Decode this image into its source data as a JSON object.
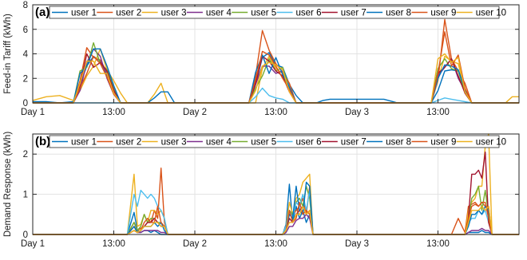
{
  "legend": [
    "user 1",
    "user 2",
    "user 3",
    "user 4",
    "user 5",
    "user 6",
    "user 7",
    "user 8",
    "user 9",
    "user 10"
  ],
  "colors": [
    "#0072bd",
    "#d95319",
    "#edb120",
    "#7e2f8e",
    "#77ac30",
    "#4dbeee",
    "#a2142f",
    "#0072bd",
    "#d95319",
    "#edb120"
  ],
  "x_tick_labels": [
    "Day 1",
    "13:00",
    "Day 2",
    "13:00",
    "Day 3",
    "13:00"
  ],
  "chart_data": [
    {
      "type": "line",
      "panel_label": "(a)",
      "ylabel": "Feed-in Tariff (kWh)",
      "ylim": [
        0,
        8
      ],
      "yticks": [
        0,
        2,
        4,
        6,
        8
      ],
      "xlim": [
        0,
        72
      ],
      "xticks": [
        0,
        12,
        24,
        36,
        48,
        60
      ],
      "x": [
        0,
        2,
        4,
        6,
        7,
        8,
        9,
        10,
        11,
        12,
        13,
        14,
        15,
        16,
        17,
        18,
        19,
        20,
        21,
        24,
        26,
        28,
        30,
        31,
        32,
        33,
        34,
        35,
        36,
        37,
        38,
        39,
        40,
        41,
        42,
        43,
        44,
        45,
        48,
        50,
        52,
        54,
        55,
        56,
        57,
        58,
        59,
        60,
        61,
        62,
        63,
        64,
        65,
        66,
        67,
        68,
        69,
        70,
        71,
        72
      ],
      "series": [
        {
          "name": "user 1",
          "values": [
            0.1,
            0.1,
            0,
            0.1,
            1.5,
            3,
            3.8,
            3.4,
            2.3,
            1.0,
            0,
            0,
            0,
            0,
            0,
            0,
            0,
            0,
            0,
            0,
            0,
            0,
            0,
            0,
            0,
            1.5,
            3.7,
            4.1,
            3.1,
            2.9,
            1.5,
            0.6,
            0,
            0,
            0,
            0,
            0,
            0,
            0,
            0,
            0,
            0,
            0,
            0,
            0,
            0,
            0,
            1.0,
            2.6,
            2.7,
            2.6,
            1.0,
            0,
            0,
            0,
            0,
            0,
            0,
            0,
            0
          ]
        },
        {
          "name": "user 2",
          "values": [
            0,
            0,
            0,
            0,
            1.8,
            4.5,
            3.7,
            3.5,
            2.5,
            1.2,
            0,
            0,
            0,
            0,
            0,
            0,
            0,
            0,
            0,
            0,
            0,
            0,
            0,
            0,
            0,
            2.2,
            5.9,
            4.3,
            3.2,
            2.5,
            1.6,
            0,
            0,
            0,
            0,
            0,
            0,
            0,
            0,
            0,
            0,
            0,
            0,
            0,
            0,
            0,
            0,
            1.8,
            6.8,
            3.6,
            2.6,
            1.6,
            0,
            0,
            0,
            0,
            0,
            0,
            0,
            0
          ]
        },
        {
          "name": "user 3",
          "values": [
            0.2,
            0.5,
            0.6,
            0.2,
            1.0,
            2.2,
            3.0,
            4.4,
            2.7,
            1.8,
            0.8,
            0,
            0,
            0,
            0,
            0.7,
            1.6,
            0,
            0,
            0,
            0,
            0,
            0,
            0,
            0,
            0,
            2.8,
            3.8,
            2.8,
            2.4,
            1.2,
            0,
            0,
            0,
            0,
            0,
            0,
            0,
            0,
            0,
            0,
            0,
            0,
            0,
            0,
            0,
            0,
            1.9,
            3.8,
            3.4,
            3.2,
            1.0,
            0,
            0,
            0,
            0,
            0,
            0,
            0.5,
            0.5
          ]
        },
        {
          "name": "user 4",
          "values": [
            0,
            0,
            0,
            0,
            1.0,
            3.3,
            4.4,
            3.8,
            2.0,
            0.7,
            0,
            0,
            0,
            0,
            0,
            0,
            0,
            0,
            0,
            0,
            0,
            0,
            0,
            0,
            0,
            1.5,
            3.0,
            3.0,
            2.4,
            2.6,
            1.0,
            0,
            0,
            0,
            0,
            0,
            0,
            0,
            0,
            0,
            0,
            0,
            0,
            0,
            0,
            0,
            0,
            2.2,
            2.9,
            3.6,
            2.0,
            1.0,
            0,
            0,
            0,
            0,
            0,
            0,
            0,
            0
          ]
        },
        {
          "name": "user 5",
          "values": [
            0,
            0,
            0,
            0,
            2.6,
            2.9,
            4.9,
            3.2,
            2.7,
            1.3,
            0,
            0,
            0,
            0,
            0,
            0,
            0,
            0,
            0,
            0,
            0,
            0,
            0,
            0,
            0,
            1.2,
            2.2,
            3.6,
            2.6,
            2.9,
            1.1,
            0,
            0,
            0,
            0,
            0,
            0,
            0,
            0,
            0,
            0,
            0,
            0,
            0,
            0,
            0,
            0,
            2.8,
            3.6,
            2.8,
            2.6,
            0.8,
            0,
            0,
            0,
            0,
            0,
            0,
            0,
            0
          ]
        },
        {
          "name": "user 6",
          "values": [
            0,
            0,
            0,
            0,
            0,
            0,
            0,
            0,
            0,
            0,
            0,
            0,
            0,
            0,
            0,
            0,
            0,
            0,
            0,
            0,
            0,
            0,
            0,
            0,
            0,
            0.5,
            1.2,
            0.6,
            0.4,
            0.3,
            0,
            0,
            0,
            0,
            0,
            0,
            0,
            0,
            0,
            0,
            0,
            0,
            0,
            0,
            0,
            0,
            0,
            0.2,
            0.4,
            0.3,
            0.2,
            0.1,
            0,
            0,
            0,
            0,
            0,
            0,
            0,
            0
          ]
        },
        {
          "name": "user 7",
          "values": [
            0,
            0,
            0,
            0,
            1.4,
            4.0,
            2.9,
            3.3,
            2.6,
            1.0,
            0,
            0,
            0,
            0,
            0,
            0,
            0,
            0,
            0,
            0,
            0,
            0,
            0,
            0,
            0,
            1.6,
            3.8,
            3.4,
            2.6,
            2.2,
            0.9,
            0,
            0,
            0,
            0,
            0,
            0,
            0,
            0,
            0,
            0,
            0,
            0,
            0,
            0,
            0,
            0,
            2.4,
            2.9,
            3.6,
            2.2,
            0.8,
            0,
            0,
            0,
            0,
            0,
            0,
            0,
            0
          ]
        },
        {
          "name": "user 8",
          "values": [
            0,
            0,
            0,
            0,
            2.4,
            3.0,
            4.4,
            4.4,
            3.0,
            1.4,
            0,
            0,
            0,
            0,
            0,
            0.4,
            0.9,
            0.9,
            0,
            0,
            0,
            0,
            0,
            0,
            0,
            2.5,
            3.9,
            2.4,
            3.7,
            2.3,
            1.3,
            0,
            0,
            0,
            0,
            0.2,
            0.3,
            0.3,
            0.3,
            0.3,
            0.3,
            0,
            0,
            0,
            0,
            0,
            0,
            2.0,
            3.1,
            3.0,
            2.7,
            1.1,
            0,
            0,
            0,
            0,
            0,
            0,
            0,
            0
          ]
        },
        {
          "name": "user 9",
          "values": [
            0,
            0,
            0,
            0,
            1.2,
            2.4,
            3.8,
            3.2,
            2.1,
            0.7,
            0,
            0,
            0,
            0,
            0,
            0,
            0,
            0,
            0,
            0,
            0,
            0,
            0,
            0,
            0,
            1.9,
            4.2,
            3.9,
            3.0,
            2.0,
            1.1,
            0,
            0,
            0,
            0,
            0,
            0,
            0,
            0,
            0,
            0,
            0,
            0,
            0,
            0,
            0,
            0,
            2.4,
            5.8,
            3.0,
            3.9,
            1.2,
            0,
            0,
            0,
            0,
            0,
            0,
            0,
            0
          ]
        },
        {
          "name": "user 10",
          "values": [
            0,
            0,
            0,
            0,
            1.6,
            3.4,
            3.4,
            2.4,
            2.4,
            0.8,
            0,
            0,
            0,
            0,
            0,
            0,
            0,
            0,
            0,
            0,
            0,
            0,
            0,
            0,
            0,
            1.0,
            3.0,
            3.3,
            3.1,
            2.7,
            0.9,
            0,
            0,
            0,
            0,
            0,
            0,
            0,
            0,
            0,
            0,
            0,
            0,
            0,
            0,
            0,
            0,
            3.6,
            4.0,
            3.3,
            3.7,
            0.9,
            0,
            0,
            0,
            0,
            0,
            0,
            0,
            0
          ]
        }
      ]
    },
    {
      "type": "line",
      "panel_label": "(b)",
      "ylabel": "Demand Response (kWh)",
      "ylim": [
        0,
        2.5
      ],
      "yticks": [
        0,
        1,
        2
      ],
      "xlim": [
        0,
        72
      ],
      "xticks": [
        0,
        12,
        24,
        36,
        48,
        60
      ],
      "x": [
        0,
        14,
        15,
        15.5,
        16,
        16.5,
        17,
        17.5,
        18,
        18.5,
        19,
        19.5,
        20,
        36,
        37,
        37.5,
        38,
        38.5,
        39,
        39.5,
        40,
        40.5,
        41,
        41.5,
        42,
        62,
        63,
        64,
        64.5,
        65,
        65.5,
        66,
        66.5,
        67,
        67.5,
        68,
        72
      ],
      "series": [
        {
          "name": "user 1",
          "values": [
            0,
            0,
            0.55,
            0.1,
            0.05,
            0.1,
            0.1,
            0.05,
            0.1,
            0.05,
            0,
            0,
            0,
            0,
            0,
            0.25,
            1.25,
            0.3,
            0.7,
            0.4,
            0.6,
            0.3,
            0.5,
            0,
            0,
            0,
            0,
            0,
            0.05,
            0.05,
            0.05,
            0.05,
            0.1,
            0.05,
            0.05,
            0,
            0
          ]
        },
        {
          "name": "user 2",
          "values": [
            0,
            0,
            0.3,
            0.1,
            0.15,
            0.2,
            0.3,
            0.3,
            0.6,
            0.4,
            1.65,
            0.3,
            0,
            0,
            0,
            0.2,
            0.5,
            0.5,
            0.6,
            0.7,
            0.9,
            0.5,
            1.2,
            0,
            0,
            0,
            0.4,
            0.05,
            0.7,
            0.75,
            0.8,
            0.7,
            0.8,
            0.7,
            0.7,
            0,
            0
          ]
        },
        {
          "name": "user 3",
          "values": [
            0,
            0,
            1.5,
            0.2,
            0.25,
            0.5,
            0.3,
            0.6,
            0.6,
            0.5,
            0.6,
            0.4,
            0,
            0,
            0,
            0.2,
            0.8,
            0.5,
            0.9,
            1.0,
            1.3,
            1.4,
            1.5,
            0,
            0,
            0,
            0,
            0,
            0.6,
            0.8,
            0.9,
            1.2,
            1.2,
            2.2,
            2.5,
            0,
            0
          ]
        },
        {
          "name": "user 4",
          "values": [
            0,
            0,
            0.1,
            0.05,
            0.05,
            0.1,
            0.1,
            0.1,
            0.1,
            0.1,
            0.05,
            0.05,
            0,
            0,
            0,
            0.05,
            0.2,
            0.2,
            0.35,
            0.4,
            0.4,
            0.5,
            0.4,
            0,
            0,
            0,
            0,
            0,
            0.05,
            0.1,
            0.1,
            0.1,
            0.15,
            0.1,
            0.1,
            0,
            0
          ]
        },
        {
          "name": "user 5",
          "values": [
            0,
            0,
            0.3,
            0.1,
            0.2,
            0.5,
            0.3,
            0.4,
            0.4,
            0.3,
            0.3,
            0.2,
            0,
            0,
            0,
            0.2,
            0.6,
            0.5,
            0.8,
            0.9,
            0.7,
            1.2,
            0.9,
            0,
            0,
            0,
            0,
            0,
            0.3,
            0.9,
            1.0,
            1.2,
            0.6,
            1.1,
            0.5,
            0,
            0
          ]
        },
        {
          "name": "user 6",
          "values": [
            0,
            0,
            1.0,
            0.7,
            1.1,
            1.0,
            0.9,
            1.0,
            0.9,
            0.7,
            0.6,
            0.4,
            0,
            0,
            0,
            0.2,
            0.6,
            0.4,
            0.8,
            0.7,
            1.0,
            0.6,
            1.1,
            0,
            0,
            0,
            0,
            0,
            0.3,
            0.4,
            0.4,
            0.6,
            0.5,
            0.6,
            0.3,
            0,
            0
          ]
        },
        {
          "name": "user 7",
          "values": [
            0,
            0,
            0.2,
            0.05,
            0.1,
            0.2,
            0.3,
            0.3,
            0.4,
            0.3,
            0.2,
            0.2,
            0,
            0,
            0,
            0.1,
            0.4,
            0.3,
            0.5,
            0.6,
            0.7,
            0.5,
            0.6,
            0,
            0,
            0,
            0,
            0,
            0.4,
            1.5,
            1.5,
            1.6,
            1.4,
            2.05,
            0.3,
            0,
            0
          ]
        },
        {
          "name": "user 8",
          "values": [
            0,
            0,
            0.2,
            0.05,
            0.1,
            0.2,
            0.2,
            0.2,
            0.3,
            0.2,
            0.3,
            0.1,
            0,
            0,
            0,
            0.1,
            0.5,
            0.4,
            1.2,
            0.6,
            0.5,
            1.3,
            1.2,
            0,
            0,
            0,
            0,
            0,
            0.2,
            0.5,
            0.5,
            0.6,
            0.5,
            0.7,
            0.6,
            0,
            0
          ]
        },
        {
          "name": "user 9",
          "values": [
            0,
            0,
            0.1,
            0.05,
            0.1,
            0.3,
            0.4,
            0.3,
            0.3,
            0.7,
            0.3,
            0.2,
            0,
            0,
            0,
            0.1,
            0.6,
            0.3,
            0.4,
            0.8,
            0.5,
            0.6,
            0.5,
            0,
            0,
            0,
            0,
            0,
            0.4,
            0.7,
            0.75,
            0.7,
            0.8,
            0.8,
            0.4,
            0,
            0
          ]
        },
        {
          "name": "user 10",
          "values": [
            0,
            0,
            0.1,
            0.05,
            0.1,
            0.2,
            0.2,
            0.2,
            0.3,
            0.3,
            0.2,
            0.2,
            0,
            0,
            0,
            0.1,
            0.3,
            0.3,
            0.5,
            0.5,
            0.7,
            0.5,
            0.6,
            0,
            0,
            0,
            0,
            0,
            0.3,
            0.6,
            0.6,
            0.6,
            0.7,
            0.6,
            0.7,
            0,
            0
          ]
        }
      ]
    }
  ]
}
